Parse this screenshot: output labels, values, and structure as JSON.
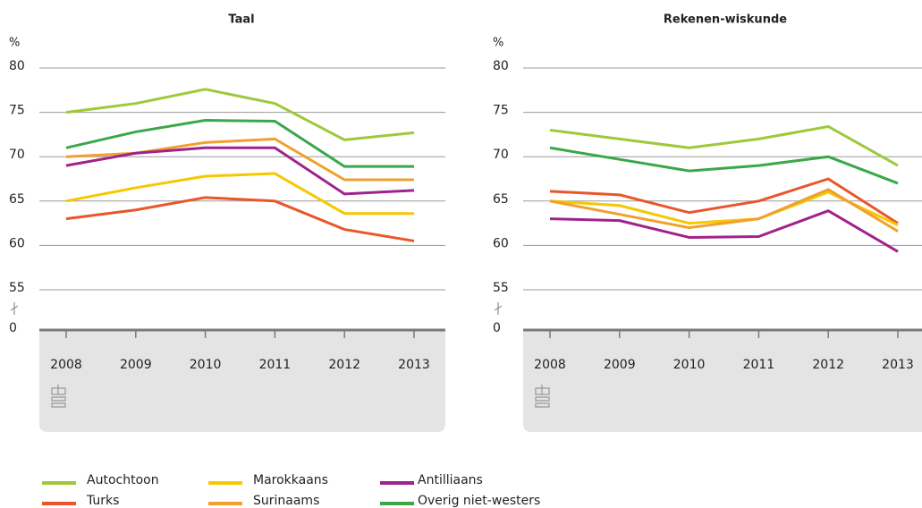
{
  "chart_data": [
    {
      "type": "line",
      "title": "Taal",
      "y_unit": "%",
      "categories": [
        "2008",
        "2009",
        "2010",
        "2011",
        "2012",
        "2013"
      ],
      "ylim": [
        0,
        80
      ],
      "yticks": [
        0,
        55,
        60,
        65,
        70,
        75,
        80
      ],
      "axis_break": [
        0,
        55
      ],
      "grid": true,
      "series": [
        {
          "name": "Autochtoon",
          "color": "#9dc93b",
          "values": [
            75,
            76,
            77.6,
            76,
            71.9,
            72.7
          ]
        },
        {
          "name": "Turks",
          "color": "#e8562a",
          "values": [
            63,
            64,
            65.4,
            65,
            61.8,
            60.5
          ]
        },
        {
          "name": "Marokkaans",
          "color": "#f5c800",
          "values": [
            65,
            66.5,
            67.8,
            68.1,
            63.6,
            63.6
          ]
        },
        {
          "name": "Surinaams",
          "color": "#f0a030",
          "values": [
            70,
            70.4,
            71.6,
            72,
            67.4,
            67.4
          ]
        },
        {
          "name": "Antilliaans",
          "color": "#a0228c",
          "values": [
            69,
            70.4,
            71,
            71,
            65.8,
            66.2
          ]
        },
        {
          "name": "Overig niet-westers",
          "color": "#3aa84a",
          "values": [
            71,
            72.8,
            74.1,
            74,
            68.9,
            68.9
          ]
        }
      ]
    },
    {
      "type": "line",
      "title": "Rekenen-wiskunde",
      "y_unit": "%",
      "categories": [
        "2008",
        "2009",
        "2010",
        "2011",
        "2012",
        "2013"
      ],
      "ylim": [
        0,
        80
      ],
      "yticks": [
        0,
        55,
        60,
        65,
        70,
        75,
        80
      ],
      "axis_break": [
        0,
        55
      ],
      "grid": true,
      "series": [
        {
          "name": "Autochtoon",
          "color": "#9dc93b",
          "values": [
            73,
            72,
            71,
            72,
            73.4,
            69
          ]
        },
        {
          "name": "Turks",
          "color": "#e8562a",
          "values": [
            66.1,
            65.7,
            63.7,
            65,
            67.5,
            62.5
          ]
        },
        {
          "name": "Marokkaans",
          "color": "#f5c800",
          "values": [
            65,
            64.5,
            62.5,
            63,
            66,
            62.3
          ]
        },
        {
          "name": "Surinaams",
          "color": "#f0a030",
          "values": [
            65,
            63.5,
            62,
            63,
            66.3,
            61.6
          ]
        },
        {
          "name": "Antilliaans",
          "color": "#a0228c",
          "values": [
            63,
            62.8,
            60.9,
            61,
            63.9,
            59.3
          ]
        },
        {
          "name": "Overig niet-westers",
          "color": "#3aa84a",
          "values": [
            71,
            69.7,
            68.4,
            69,
            70,
            67
          ]
        }
      ]
    }
  ]
}
